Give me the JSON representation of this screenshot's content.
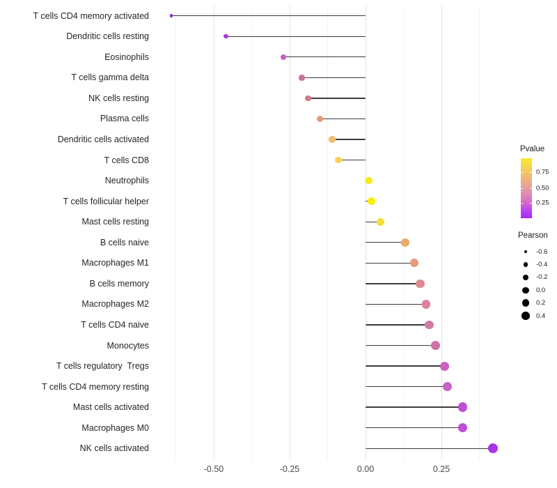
{
  "chart_data": {
    "type": "scatter",
    "subtype": "lollipop",
    "title": "",
    "xlabel": "",
    "ylabel": "",
    "xlim": [
      -0.69,
      0.47
    ],
    "grid": "vertical-only",
    "stem_color": "#3a3a3a",
    "x_major_ticks": [
      {
        "value": -0.5,
        "label": "-0.50"
      },
      {
        "value": -0.25,
        "label": "-0.25"
      },
      {
        "value": 0.0,
        "label": "0.00"
      },
      {
        "value": 0.25,
        "label": "0.25"
      }
    ],
    "x_minor_ticks": [
      -0.625,
      -0.375,
      -0.125,
      0.125,
      0.375
    ],
    "categories": [
      "T cells CD4 memory activated",
      "Dendritic cells resting",
      "Eosinophils",
      "T cells gamma delta",
      "NK cells resting",
      "Plasma cells",
      "Dendritic cells activated",
      "T cells CD8",
      "Neutrophils",
      "T cells follicular helper",
      "Mast cells resting",
      "B cells naive",
      "Macrophages M1",
      "B cells memory",
      "Macrophages M2",
      "T cells CD4 naive",
      "Monocytes",
      "T cells regulatory  Tregs",
      "T cells CD4 memory resting",
      "Mast cells activated",
      "Macrophages M0",
      "NK cells activated"
    ],
    "rows": [
      {
        "label": "T cells CD4 memory activated",
        "pearson": -0.64,
        "color": "#8329d6"
      },
      {
        "label": "Dendritic cells resting",
        "pearson": -0.46,
        "color": "#a43bd8"
      },
      {
        "label": "Eosinophils",
        "pearson": -0.27,
        "color": "#c660c6"
      },
      {
        "label": "T cells gamma delta",
        "pearson": -0.21,
        "color": "#ca6f9e"
      },
      {
        "label": "NK cells resting",
        "pearson": -0.19,
        "color": "#d37a8b"
      },
      {
        "label": "Plasma cells",
        "pearson": -0.15,
        "color": "#e39a76"
      },
      {
        "label": "Dendritic cells activated",
        "pearson": -0.11,
        "color": "#f0be72"
      },
      {
        "label": "T cells CD8",
        "pearson": -0.09,
        "color": "#f2d35a"
      },
      {
        "label": "Neutrophils",
        "pearson": 0.01,
        "color": "#f8eb16"
      },
      {
        "label": "T cells follicular helper",
        "pearson": 0.02,
        "color": "#f9ee0a"
      },
      {
        "label": "Mast cells resting",
        "pearson": 0.05,
        "color": "#f5de3c"
      },
      {
        "label": "B cells naive",
        "pearson": 0.13,
        "color": "#eda96a"
      },
      {
        "label": "Macrophages M1",
        "pearson": 0.16,
        "color": "#e8997e"
      },
      {
        "label": "B cells memory",
        "pearson": 0.18,
        "color": "#e08a8d"
      },
      {
        "label": "Macrophages M2",
        "pearson": 0.2,
        "color": "#dd8298"
      },
      {
        "label": "T cells CD4 naive",
        "pearson": 0.21,
        "color": "#d47da4"
      },
      {
        "label": "Monocytes",
        "pearson": 0.23,
        "color": "#d171a5"
      },
      {
        "label": "T cells regulatory  Tregs",
        "pearson": 0.26,
        "color": "#ca62be"
      },
      {
        "label": "T cells CD4 memory resting",
        "pearson": 0.27,
        "color": "#c763c5"
      },
      {
        "label": "Mast cells activated",
        "pearson": 0.32,
        "color": "#bf4ed6"
      },
      {
        "label": "Macrophages M0",
        "pearson": 0.32,
        "color": "#bf4ed6"
      },
      {
        "label": "NK cells activated",
        "pearson": 0.42,
        "color": "#aa33e4"
      }
    ],
    "legend_pvalue": {
      "title": "Pvalue",
      "position": "right",
      "gradient": [
        "#f9ea2e 0%",
        "#f3c962 22%",
        "#eba88e 42%",
        "#e293ac 55%",
        "#d76ec8 72%",
        "#bc41ee 88%",
        "#a227fa 100%"
      ],
      "ticks": [
        {
          "label": "0.75",
          "pos_pct": 23.5
        },
        {
          "label": "0.50",
          "pos_pct": 50.0
        },
        {
          "label": "0.25",
          "pos_pct": 74.0
        }
      ]
    },
    "legend_pearson": {
      "title": "Pearson",
      "position": "right",
      "items": [
        {
          "label": "-0.6",
          "diameter": 4.6
        },
        {
          "label": "-0.4",
          "diameter": 6.6
        },
        {
          "label": "-0.2",
          "diameter": 8.2
        },
        {
          "label": "0.0",
          "diameter": 9.6
        },
        {
          "label": "0.2",
          "diameter": 10.6
        },
        {
          "label": "0.4",
          "diameter": 11.6
        }
      ]
    }
  }
}
